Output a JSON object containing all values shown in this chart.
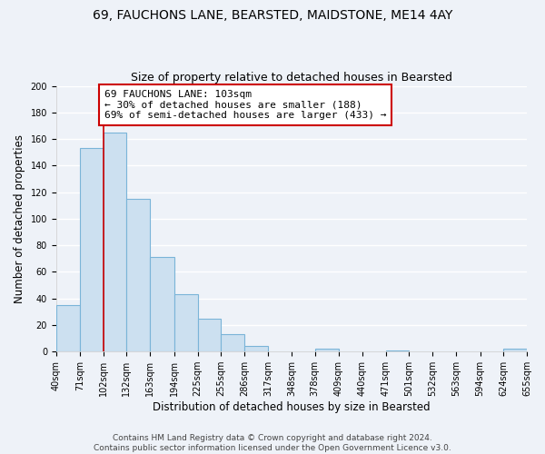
{
  "title": "69, FAUCHONS LANE, BEARSTED, MAIDSTONE, ME14 4AY",
  "subtitle": "Size of property relative to detached houses in Bearsted",
  "xlabel": "Distribution of detached houses by size in Bearsted",
  "ylabel": "Number of detached properties",
  "bar_color": "#cce0f0",
  "bar_edge_color": "#7ab4d8",
  "highlight_bar_edge_color": "#cc0000",
  "bins": [
    40,
    71,
    102,
    132,
    163,
    194,
    225,
    255,
    286,
    317,
    348,
    378,
    409,
    440,
    471,
    501,
    532,
    563,
    594,
    624,
    655
  ],
  "counts": [
    35,
    153,
    165,
    115,
    71,
    43,
    25,
    13,
    4,
    0,
    0,
    2,
    0,
    0,
    1,
    0,
    0,
    0,
    0,
    2
  ],
  "highlight_bin_index": 2,
  "annotation_line1": "69 FAUCHONS LANE: 103sqm",
  "annotation_line2": "← 30% of detached houses are smaller (188)",
  "annotation_line3": "69% of semi-detached houses are larger (433) →",
  "annotation_box_color": "white",
  "annotation_box_edge_color": "#cc0000",
  "ylim": [
    0,
    200
  ],
  "yticks": [
    0,
    20,
    40,
    60,
    80,
    100,
    120,
    140,
    160,
    180,
    200
  ],
  "tick_labels": [
    "40sqm",
    "71sqm",
    "102sqm",
    "132sqm",
    "163sqm",
    "194sqm",
    "225sqm",
    "255sqm",
    "286sqm",
    "317sqm",
    "348sqm",
    "378sqm",
    "409sqm",
    "440sqm",
    "471sqm",
    "501sqm",
    "532sqm",
    "563sqm",
    "594sqm",
    "624sqm",
    "655sqm"
  ],
  "footer_line1": "Contains HM Land Registry data © Crown copyright and database right 2024.",
  "footer_line2": "Contains public sector information licensed under the Open Government Licence v3.0.",
  "background_color": "#eef2f8",
  "grid_color": "#ffffff",
  "title_fontsize": 10,
  "subtitle_fontsize": 9,
  "axis_label_fontsize": 8.5,
  "tick_fontsize": 7,
  "annotation_fontsize": 8,
  "footer_fontsize": 6.5
}
